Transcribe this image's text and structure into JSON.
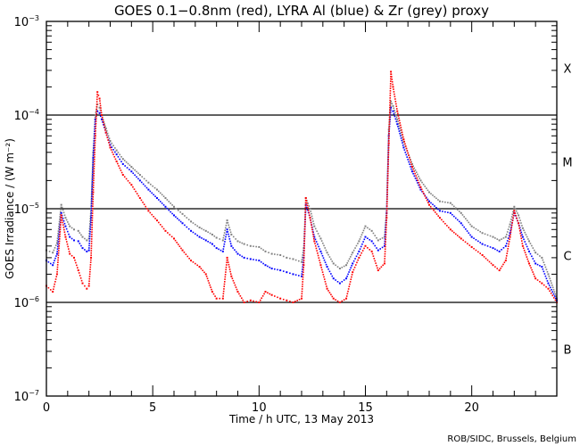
{
  "chart_data": {
    "type": "scatter",
    "title": "GOES 0.1−0.8nm (red), LYRA Al (blue) & Zr (grey) proxy",
    "xlabel": "Time / h UTC, 13 May 2013",
    "ylabel": "GOES Irradiance / (W m⁻²)",
    "credit": "ROB/SIDC, Brussels, Belgium",
    "xlim": [
      0,
      24
    ],
    "ylim": [
      1e-07,
      0.001
    ],
    "yscale": "log",
    "grid": "horizontal lines at decade boundaries 1e-4, 1e-5, 1e-6",
    "x_ticks": [
      {
        "value": 0,
        "label": "0"
      },
      {
        "value": 5,
        "label": "5"
      },
      {
        "value": 10,
        "label": "10"
      },
      {
        "value": 15,
        "label": "15"
      },
      {
        "value": 20,
        "label": "20"
      }
    ],
    "y_ticks": [
      {
        "value": 0.001,
        "base": "10",
        "exp": "−3"
      },
      {
        "value": 0.0001,
        "base": "10",
        "exp": "−4"
      },
      {
        "value": 1e-05,
        "base": "10",
        "exp": "−5"
      },
      {
        "value": 1e-06,
        "base": "10",
        "exp": "−6"
      },
      {
        "value": 1e-07,
        "base": "10",
        "exp": "−7"
      }
    ],
    "flare_classes": [
      {
        "label": "X",
        "value": 0.000316
      },
      {
        "label": "M",
        "value": 3.16e-05
      },
      {
        "label": "C",
        "value": 3.16e-06
      },
      {
        "label": "B",
        "value": 3.16e-07
      }
    ],
    "series": [
      {
        "name": "GOES 0.1-0.8nm",
        "color": "#ff0000",
        "x": [
          0,
          0.3,
          0.5,
          0.7,
          0.9,
          1.1,
          1.3,
          1.5,
          1.7,
          1.9,
          2.0,
          2.1,
          2.2,
          2.3,
          2.4,
          2.5,
          2.6,
          2.8,
          3.0,
          3.3,
          3.6,
          4.0,
          4.4,
          4.8,
          5.2,
          5.6,
          6.0,
          6.4,
          6.8,
          7.2,
          7.5,
          7.8,
          8.0,
          8.3,
          8.5,
          8.7,
          9.0,
          9.3,
          9.6,
          10.0,
          10.3,
          10.6,
          11.0,
          11.3,
          11.6,
          12.0,
          12.1,
          12.2,
          12.4,
          12.6,
          12.9,
          13.2,
          13.5,
          13.8,
          14.1,
          14.4,
          14.7,
          15.0,
          15.3,
          15.6,
          15.9,
          16.0,
          16.1,
          16.2,
          16.3,
          16.5,
          16.8,
          17.2,
          17.6,
          18.0,
          18.5,
          19.0,
          19.5,
          20.0,
          20.5,
          21.0,
          21.3,
          21.6,
          21.8,
          22.0,
          22.2,
          22.4,
          22.7,
          23.0,
          23.3,
          23.6,
          24.0
        ],
        "values": [
          1.5e-06,
          1.3e-06,
          2e-06,
          8.5e-06,
          5e-06,
          3.3e-06,
          3e-06,
          2.2e-06,
          1.6e-06,
          1.4e-06,
          1.5e-06,
          3e-06,
          1.5e-05,
          6e-05,
          0.000176,
          0.00015,
          0.0001,
          6.5e-05,
          4.5e-05,
          3.2e-05,
          2.3e-05,
          1.8e-05,
          1.3e-05,
          9.5e-06,
          7.5e-06,
          5.8e-06,
          4.8e-06,
          3.6e-06,
          2.8e-06,
          2.4e-06,
          2e-06,
          1.3e-06,
          1.1e-06,
          1.1e-06,
          3e-06,
          1.9e-06,
          1.3e-06,
          1e-06,
          1.05e-06,
          1e-06,
          1.3e-06,
          1.2e-06,
          1.1e-06,
          1.05e-06,
          1e-06,
          1.1e-06,
          2.5e-06,
          1.3e-05,
          8e-06,
          4.5e-06,
          2.5e-06,
          1.4e-06,
          1.1e-06,
          1e-06,
          1.1e-06,
          2.1e-06,
          3e-06,
          4e-06,
          3.5e-06,
          2.2e-06,
          2.6e-06,
          8e-06,
          5e-05,
          0.00029,
          0.0002,
          0.00011,
          5.5e-05,
          2.8e-05,
          1.7e-05,
          1.1e-05,
          8e-06,
          6e-06,
          4.8e-06,
          3.9e-06,
          3.2e-06,
          2.5e-06,
          2.2e-06,
          2.8e-06,
          5e-06,
          9.5e-06,
          7e-06,
          4e-06,
          2.6e-06,
          1.8e-06,
          1.6e-06,
          1.4e-06,
          1e-06
        ]
      },
      {
        "name": "LYRA Al proxy",
        "color": "#0000ff",
        "x": [
          0,
          0.3,
          0.5,
          0.7,
          0.9,
          1.1,
          1.3,
          1.5,
          1.7,
          1.9,
          2.0,
          2.1,
          2.2,
          2.3,
          2.4,
          2.5,
          2.6,
          2.8,
          3.0,
          3.3,
          3.6,
          4.0,
          4.4,
          4.8,
          5.2,
          5.6,
          6.0,
          6.4,
          6.8,
          7.2,
          7.5,
          7.8,
          8.0,
          8.3,
          8.5,
          8.7,
          9.0,
          9.3,
          9.6,
          10.0,
          10.3,
          10.6,
          11.0,
          11.3,
          11.6,
          12.0,
          12.1,
          12.2,
          12.4,
          12.6,
          12.9,
          13.2,
          13.5,
          13.8,
          14.1,
          14.4,
          14.7,
          15.0,
          15.3,
          15.6,
          15.9,
          16.0,
          16.1,
          16.2,
          16.3,
          16.5,
          16.8,
          17.2,
          17.6,
          18.0,
          18.5,
          19.0,
          19.5,
          20.0,
          20.5,
          21.0,
          21.3,
          21.6,
          21.8,
          22.0,
          22.2,
          22.4,
          22.7,
          23.0,
          23.3,
          23.6,
          24.0
        ],
        "values": [
          2.8e-06,
          2.5e-06,
          3.3e-06,
          9e-06,
          6.5e-06,
          5e-06,
          4.6e-06,
          4.5e-06,
          3.8e-06,
          3.5e-06,
          3.6e-06,
          8e-06,
          3.5e-05,
          9e-05,
          0.00011,
          0.000105,
          9e-05,
          6.5e-05,
          4.8e-05,
          3.8e-05,
          3e-05,
          2.5e-05,
          2e-05,
          1.6e-05,
          1.3e-05,
          1.05e-05,
          8.5e-06,
          7e-06,
          5.8e-06,
          5e-06,
          4.6e-06,
          4.2e-06,
          3.8e-06,
          3.5e-06,
          6e-06,
          4e-06,
          3.3e-06,
          3e-06,
          2.9e-06,
          2.8e-06,
          2.5e-06,
          2.3e-06,
          2.2e-06,
          2.1e-06,
          2e-06,
          1.9e-06,
          3e-06,
          1.1e-05,
          8e-06,
          5e-06,
          3.5e-06,
          2.4e-06,
          1.8e-06,
          1.6e-06,
          1.8e-06,
          2.6e-06,
          3.5e-06,
          5e-06,
          4.5e-06,
          3.6e-06,
          4e-06,
          9e-06,
          6e-05,
          0.00012,
          0.00011,
          8e-05,
          4.5e-05,
          2.5e-05,
          1.6e-05,
          1.2e-05,
          9.5e-06,
          9e-06,
          7e-06,
          5e-06,
          4.2e-06,
          3.8e-06,
          3.5e-06,
          4e-06,
          5.5e-06,
          9e-06,
          7e-06,
          5e-06,
          3.5e-06,
          2.6e-06,
          2.4e-06,
          1.6e-06,
          1.05e-06
        ]
      },
      {
        "name": "LYRA Zr proxy",
        "color": "#808080",
        "x": [
          0,
          0.3,
          0.5,
          0.7,
          0.9,
          1.1,
          1.3,
          1.5,
          1.7,
          1.9,
          2.0,
          2.1,
          2.2,
          2.3,
          2.4,
          2.5,
          2.6,
          2.8,
          3.0,
          3.3,
          3.6,
          4.0,
          4.4,
          4.8,
          5.2,
          5.6,
          6.0,
          6.4,
          6.8,
          7.2,
          7.5,
          7.8,
          8.0,
          8.3,
          8.5,
          8.7,
          9.0,
          9.3,
          9.6,
          10.0,
          10.3,
          10.6,
          11.0,
          11.3,
          11.6,
          12.0,
          12.1,
          12.2,
          12.4,
          12.6,
          12.9,
          13.2,
          13.5,
          13.8,
          14.1,
          14.4,
          14.7,
          15.0,
          15.3,
          15.6,
          15.9,
          16.0,
          16.1,
          16.2,
          16.3,
          16.5,
          16.8,
          17.2,
          17.6,
          18.0,
          18.5,
          19.0,
          19.5,
          20.0,
          20.5,
          21.0,
          21.3,
          21.6,
          21.8,
          22.0,
          22.2,
          22.4,
          22.7,
          23.0,
          23.3,
          23.6,
          24.0
        ],
        "values": [
          3.6e-06,
          3.4e-06,
          4.3e-06,
          1.1e-05,
          8e-06,
          6.5e-06,
          6e-06,
          5.8e-06,
          5e-06,
          4.6e-06,
          4.8e-06,
          1e-05,
          4e-05,
          0.0001,
          0.00013,
          0.00012,
          0.0001,
          7.2e-05,
          5.3e-05,
          4.2e-05,
          3.4e-05,
          2.8e-05,
          2.3e-05,
          1.9e-05,
          1.6e-05,
          1.3e-05,
          1.05e-05,
          8.8e-06,
          7.3e-06,
          6.3e-06,
          5.8e-06,
          5.3e-06,
          4.9e-06,
          4.6e-06,
          7.5e-06,
          5.3e-06,
          4.5e-06,
          4.2e-06,
          4e-06,
          3.9e-06,
          3.5e-06,
          3.3e-06,
          3.2e-06,
          3e-06,
          2.9e-06,
          2.7e-06,
          3.8e-06,
          1.3e-05,
          1e-05,
          6.5e-06,
          4.8e-06,
          3.4e-06,
          2.6e-06,
          2.3e-06,
          2.5e-06,
          3.4e-06,
          4.5e-06,
          6.5e-06,
          5.8e-06,
          4.6e-06,
          5e-06,
          1e-05,
          7e-05,
          0.00014,
          0.000125,
          9e-05,
          5.2e-05,
          3e-05,
          2e-05,
          1.5e-05,
          1.2e-05,
          1.15e-05,
          9e-06,
          6.5e-06,
          5.5e-06,
          5e-06,
          4.6e-06,
          5e-06,
          6.8e-06,
          1.05e-05,
          8.5e-06,
          6.2e-06,
          4.5e-06,
          3.4e-06,
          3e-06,
          2e-06,
          1.1e-06
        ]
      }
    ]
  }
}
